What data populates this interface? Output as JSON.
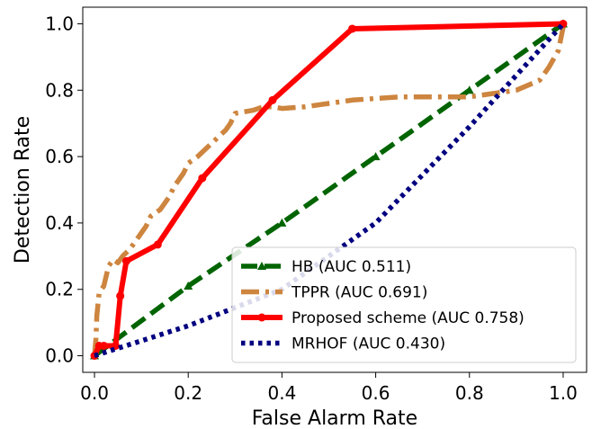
{
  "chart_data": {
    "type": "line",
    "title": "",
    "xlabel": "False Alarm Rate",
    "ylabel": "Detection Rate",
    "xlim": [
      -0.025,
      1.05
    ],
    "ylim": [
      -0.05,
      1.05
    ],
    "xticks": [
      0.0,
      0.2,
      0.4,
      0.6,
      0.8,
      1.0
    ],
    "yticks": [
      0.0,
      0.2,
      0.4,
      0.6,
      0.8,
      1.0
    ],
    "xtick_labels": [
      "0.0",
      "0.2",
      "0.4",
      "0.6",
      "0.8",
      "1.0"
    ],
    "ytick_labels": [
      "0.0",
      "0.2",
      "0.4",
      "0.6",
      "0.8",
      "1.0"
    ],
    "grid": false,
    "legend_position": "lower-right",
    "series": [
      {
        "name": "HB (AUC 0.511)",
        "color": "#006400",
        "style": "dashed",
        "marker": "triangle",
        "x": [
          0.0,
          0.2,
          0.4,
          0.6,
          0.8,
          1.0
        ],
        "y": [
          0.0,
          0.21,
          0.4,
          0.6,
          0.8,
          1.0
        ]
      },
      {
        "name": "TPPR (AUC 0.691)",
        "color": "#cd853f",
        "style": "dashdot",
        "marker": "none",
        "x": [
          0.0,
          0.003,
          0.005,
          0.01,
          0.015,
          0.02,
          0.025,
          0.03,
          0.035,
          0.04,
          0.05,
          0.06,
          0.075,
          0.09,
          0.1,
          0.11,
          0.12,
          0.13,
          0.14,
          0.15,
          0.16,
          0.17,
          0.18,
          0.19,
          0.2,
          0.21,
          0.22,
          0.235,
          0.25,
          0.265,
          0.28,
          0.29,
          0.3,
          0.32,
          0.34,
          0.36,
          0.38,
          0.4,
          0.45,
          0.5,
          0.55,
          0.6,
          0.65,
          0.7,
          0.75,
          0.8,
          0.85,
          0.9,
          0.95,
          0.97,
          0.99,
          1.0
        ],
        "y": [
          0.0,
          0.05,
          0.12,
          0.19,
          0.2,
          0.21,
          0.24,
          0.27,
          0.28,
          0.29,
          0.28,
          0.3,
          0.32,
          0.35,
          0.37,
          0.39,
          0.42,
          0.43,
          0.44,
          0.46,
          0.48,
          0.51,
          0.53,
          0.55,
          0.58,
          0.59,
          0.6,
          0.62,
          0.64,
          0.66,
          0.68,
          0.7,
          0.73,
          0.735,
          0.74,
          0.75,
          0.75,
          0.745,
          0.75,
          0.76,
          0.77,
          0.775,
          0.78,
          0.78,
          0.78,
          0.78,
          0.79,
          0.8,
          0.83,
          0.87,
          0.92,
          0.99
        ]
      },
      {
        "name": "Proposed scheme (AUC 0.758)",
        "color": "#ff0000",
        "style": "solid",
        "marker": "circle",
        "x": [
          0.0,
          0.01,
          0.02,
          0.045,
          0.055,
          0.068,
          0.135,
          0.23,
          0.38,
          0.55,
          1.0
        ],
        "y": [
          0.0,
          0.03,
          0.03,
          0.03,
          0.18,
          0.285,
          0.335,
          0.535,
          0.77,
          0.985,
          1.0
        ]
      },
      {
        "name": "MRHOF (AUC 0.430)",
        "color": "#000080",
        "style": "dotted",
        "marker": "none",
        "x": [
          0.0,
          0.2,
          0.4,
          0.6,
          0.8,
          1.0
        ],
        "y": [
          0.0,
          0.09,
          0.2,
          0.4,
          0.69,
          1.0
        ]
      }
    ]
  }
}
